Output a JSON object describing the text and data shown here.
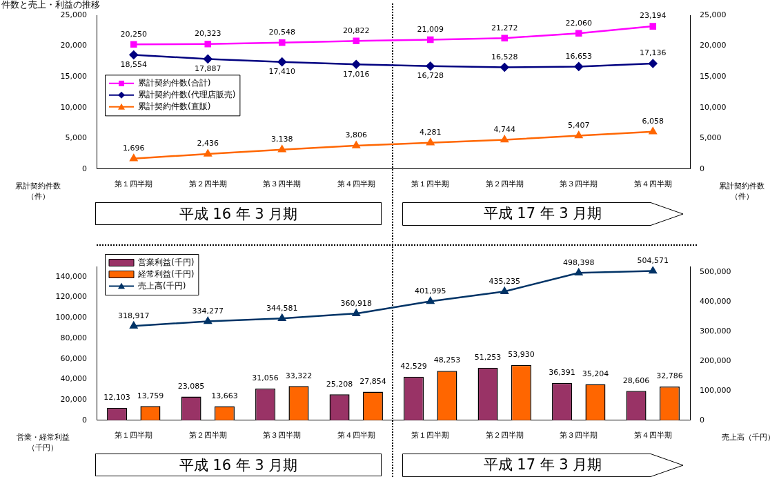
{
  "chart_data": [
    {
      "type": "line",
      "title": "件数と売上・利益の推移",
      "ylabel": "累計契約件数（件）",
      "y2label": "累計契約件数（件）",
      "categories": [
        "第１四半期",
        "第２四半期",
        "第３四半期",
        "第４四半期",
        "第１四半期",
        "第２四半期",
        "第３四半期",
        "第４四半期"
      ],
      "series": [
        {
          "name": "累計契約件数(合計)",
          "color": "#ff00ff",
          "marker": "square",
          "values": [
            20250,
            20323,
            20548,
            20822,
            21009,
            21272,
            22060,
            23194
          ],
          "value_labels": [
            "20,250",
            "20,323",
            "20,548",
            "20,822",
            "21,009",
            "21,272",
            "22,060",
            "23,194"
          ]
        },
        {
          "name": "累計契約件数(代理店販売)",
          "color": "#000080",
          "marker": "diamond",
          "values": [
            18554,
            17887,
            17410,
            17016,
            16728,
            16528,
            16653,
            17136
          ],
          "value_labels": [
            "18,554",
            "17,887",
            "17,410",
            "17,016",
            "16,728",
            "16,528",
            "16,653",
            "17,136"
          ]
        },
        {
          "name": "累計契約件数(直販)",
          "color": "#ff6600",
          "marker": "triangle",
          "values": [
            1696,
            2436,
            3138,
            3806,
            4281,
            4744,
            5407,
            6058
          ],
          "value_labels": [
            "1,696",
            "2,436",
            "3,138",
            "3,806",
            "4,281",
            "4,744",
            "5,407",
            "6,058"
          ]
        }
      ],
      "ylim": [
        0,
        25000
      ],
      "yticks": [
        0,
        {
          "value": 5000,
          "label": "5,000"
        },
        {
          "value": 10000,
          "label": "10,000"
        },
        {
          "value": 15000,
          "label": "15,000"
        },
        {
          "value": 20000,
          "label": "20,000"
        },
        {
          "value": 25000,
          "label": "25,000"
        }
      ],
      "y2lim": [
        0,
        25000
      ],
      "y2ticks": [
        0,
        {
          "value": 5000,
          "label": "5,000"
        },
        {
          "value": 10000,
          "label": "10,000"
        },
        {
          "value": 15000,
          "label": "15,000"
        },
        {
          "value": 20000,
          "label": "20,000"
        },
        {
          "value": 25000,
          "label": "25,000"
        }
      ],
      "legend": "left",
      "annotations": [
        "平成 16 年 3 月期",
        "平成 17 年 3 月期"
      ]
    },
    {
      "type": "bar",
      "ylabel": "営業・経常利益（千円）",
      "y2label": "売上高（千円）",
      "categories": [
        "第１四半期",
        "第２四半期",
        "第３四半期",
        "第４四半期",
        "第１四半期",
        "第２四半期",
        "第３四半期",
        "第４四半期"
      ],
      "series": [
        {
          "name": "営業利益(千円)",
          "color": "#993366",
          "values": [
            12103,
            23085,
            31056,
            25208,
            42529,
            51253,
            36391,
            28606
          ],
          "value_labels": [
            "12,103",
            "23,085",
            "31,056",
            "25,208",
            "42,529",
            "51,253",
            "36,391",
            "28,606"
          ]
        },
        {
          "name": "経常利益(千円)",
          "color": "#ff6600",
          "values": [
            13759,
            13663,
            33322,
            27854,
            48253,
            53930,
            35204,
            32786
          ],
          "value_labels": [
            "13,759",
            "13,663",
            "33,322",
            "27,854",
            "48,253",
            "53,930",
            "35,204",
            "32,786"
          ]
        },
        {
          "name": "売上高(千円)",
          "type": "line",
          "axis": "y2",
          "marker": "triangle",
          "color": "#003366",
          "values": [
            318917,
            334277,
            344581,
            360918,
            401995,
            435235,
            498398,
            504571
          ],
          "value_labels": [
            "318,917",
            "334,277",
            "344,581",
            "360,918",
            "401,995",
            "435,235",
            "498,398",
            "504,571"
          ]
        }
      ],
      "ylim": [
        0,
        150000
      ],
      "yticks": [
        0,
        {
          "value": 20000,
          "label": "20,000"
        },
        {
          "value": 40000,
          "label": "40,000"
        },
        {
          "value": 60000,
          "label": "60,000"
        },
        {
          "value": 80000,
          "label": "80,000"
        },
        {
          "value": 100000,
          "label": "100,000"
        },
        {
          "value": 120000,
          "label": "120,000"
        },
        {
          "value": 140000,
          "label": "140,000"
        }
      ],
      "y2lim": [
        0,
        520000
      ],
      "y2ticks": [
        0,
        {
          "value": 100000,
          "label": "100,000"
        },
        {
          "value": 200000,
          "label": "200,000"
        },
        {
          "value": 300000,
          "label": "300,000"
        },
        {
          "value": 400000,
          "label": "400,000"
        },
        {
          "value": 500000,
          "label": "500,000"
        }
      ],
      "legend": "top left",
      "annotations": [
        "平成 16 年 3 月期",
        "平成 17 年 3 月期"
      ]
    }
  ]
}
